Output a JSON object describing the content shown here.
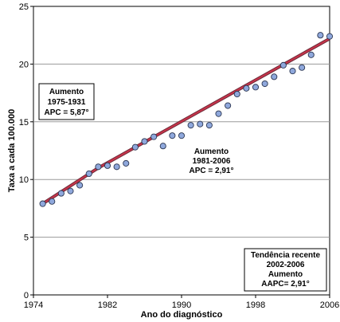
{
  "chart_data": {
    "type": "scatter",
    "title": "",
    "xlabel": "Ano do diagnóstico",
    "ylabel": "Taxa a cada 100.000",
    "xlim": [
      1974,
      2006
    ],
    "ylim": [
      0,
      25
    ],
    "x_ticks": [
      1974,
      1982,
      1990,
      1998,
      2006
    ],
    "y_ticks": [
      0,
      5,
      10,
      15,
      20,
      25
    ],
    "grid": "horizontal",
    "series": [
      {
        "type": "scatter",
        "color": "#8fa8dc",
        "x": [
          1975,
          1976,
          1977,
          1978,
          1979,
          1980,
          1981,
          1982,
          1983,
          1984,
          1985,
          1986,
          1987,
          1988,
          1989,
          1990,
          1991,
          1992,
          1993,
          1994,
          1995,
          1996,
          1997,
          1998,
          1999,
          2000,
          2001,
          2002,
          2003,
          2004,
          2005,
          2006
        ],
        "y": [
          7.9,
          8.1,
          8.8,
          9.0,
          9.5,
          10.5,
          11.1,
          11.2,
          11.1,
          11.4,
          12.8,
          13.3,
          13.7,
          12.9,
          13.8,
          13.8,
          14.7,
          14.8,
          14.7,
          15.7,
          16.4,
          17.4,
          17.9,
          18.0,
          18.3,
          18.9,
          19.9,
          19.4,
          19.7,
          20.8,
          22.5,
          22.4
        ]
      },
      {
        "type": "line",
        "color": "#c8334a",
        "x": [
          1975,
          1981,
          2006
        ],
        "y": [
          7.9,
          11.0,
          22.2
        ]
      }
    ],
    "annotations": [
      {
        "lines": [
          "Aumento",
          "1975-1931",
          "APC = 5,87°"
        ]
      },
      {
        "lines": [
          "Aumento",
          "1981-2006",
          "APC = 2,91°"
        ]
      },
      {
        "lines": [
          "Tendência recente",
          "2002-2006",
          "Aumento",
          "AAPC= 2,91°"
        ]
      }
    ]
  }
}
